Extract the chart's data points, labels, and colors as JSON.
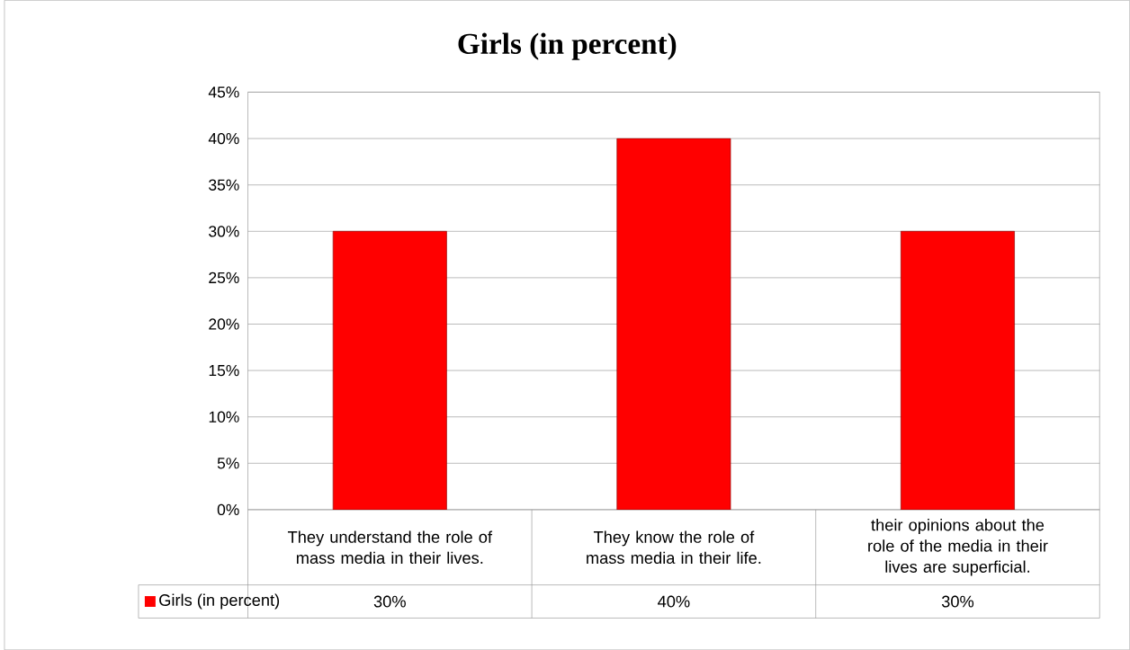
{
  "chart_data": {
    "type": "bar",
    "title": "Girls (in percent)",
    "categories": [
      "They understand the role of mass media in their lives.",
      "They know the role of mass media in their life.",
      "their opinions about the role of the media in their lives are superficial."
    ],
    "series": [
      {
        "name": "Girls (in percent)",
        "color": "#ff0000",
        "values": [
          30,
          40,
          30
        ],
        "value_labels": [
          "30%",
          "40%",
          "30%"
        ]
      }
    ],
    "ylim": [
      0,
      45
    ],
    "yticks": [
      {
        "value": 0,
        "label": "0%"
      },
      {
        "value": 5,
        "label": "5%"
      },
      {
        "value": 10,
        "label": "10%"
      },
      {
        "value": 15,
        "label": "15%"
      },
      {
        "value": 20,
        "label": "20%"
      },
      {
        "value": 25,
        "label": "25%"
      },
      {
        "value": 30,
        "label": "30%"
      },
      {
        "value": 35,
        "label": "35%"
      },
      {
        "value": 40,
        "label": "40%"
      },
      {
        "value": 45,
        "label": "45%"
      }
    ],
    "grid": "y",
    "legend": "bottom"
  }
}
